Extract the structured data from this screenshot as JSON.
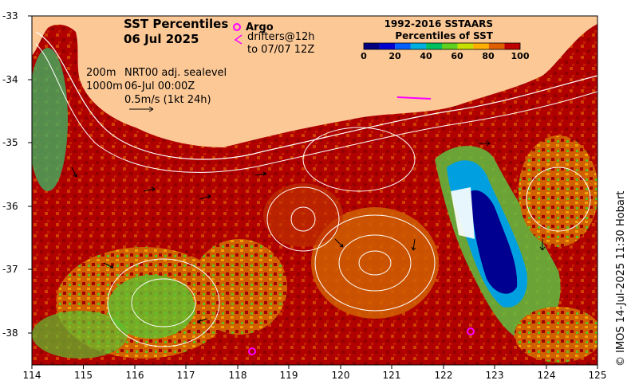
{
  "title": {
    "line1": "SST Percentiles",
    "line2": "06 Jul 2025"
  },
  "legend": {
    "argo_label": "Argo",
    "drifters_line1": "drifters@12h",
    "drifters_line2": "to 07/07 12Z",
    "argo_color": "#ff00ff",
    "drifter_color": "#ff00ff"
  },
  "info": {
    "contour_200": "200m",
    "contour_1000": "1000m",
    "sealevel_label": "NRT00 adj. sealevel",
    "sealevel_time": "06-Jul 00:00Z",
    "scale_label": "0.5m/s (1kt 24h)"
  },
  "colorbar": {
    "title_line1": "1992-2016 SSTAARS",
    "title_line2": "Percentiles of SST",
    "ticks": [
      "0",
      "20",
      "40",
      "60",
      "80",
      "100"
    ],
    "colors": [
      "#000080",
      "#0000d0",
      "#0060ff",
      "#00b0e0",
      "#00c060",
      "#60d020",
      "#c8e000",
      "#ffb000",
      "#e06000",
      "#c00000"
    ]
  },
  "axes": {
    "x_ticks": [
      "114",
      "115",
      "116",
      "117",
      "118",
      "119",
      "120",
      "121",
      "122",
      "123",
      "124",
      "125"
    ],
    "y_ticks": [
      "-33",
      "-34",
      "-35",
      "-36",
      "-37",
      "-38"
    ]
  },
  "credit": "© IMOS 14-Jul-2025 11:30 Hobart",
  "colors": {
    "land": "#fcc896",
    "hot": "#a00000",
    "warm": "#d06000",
    "cold": "#000090"
  }
}
